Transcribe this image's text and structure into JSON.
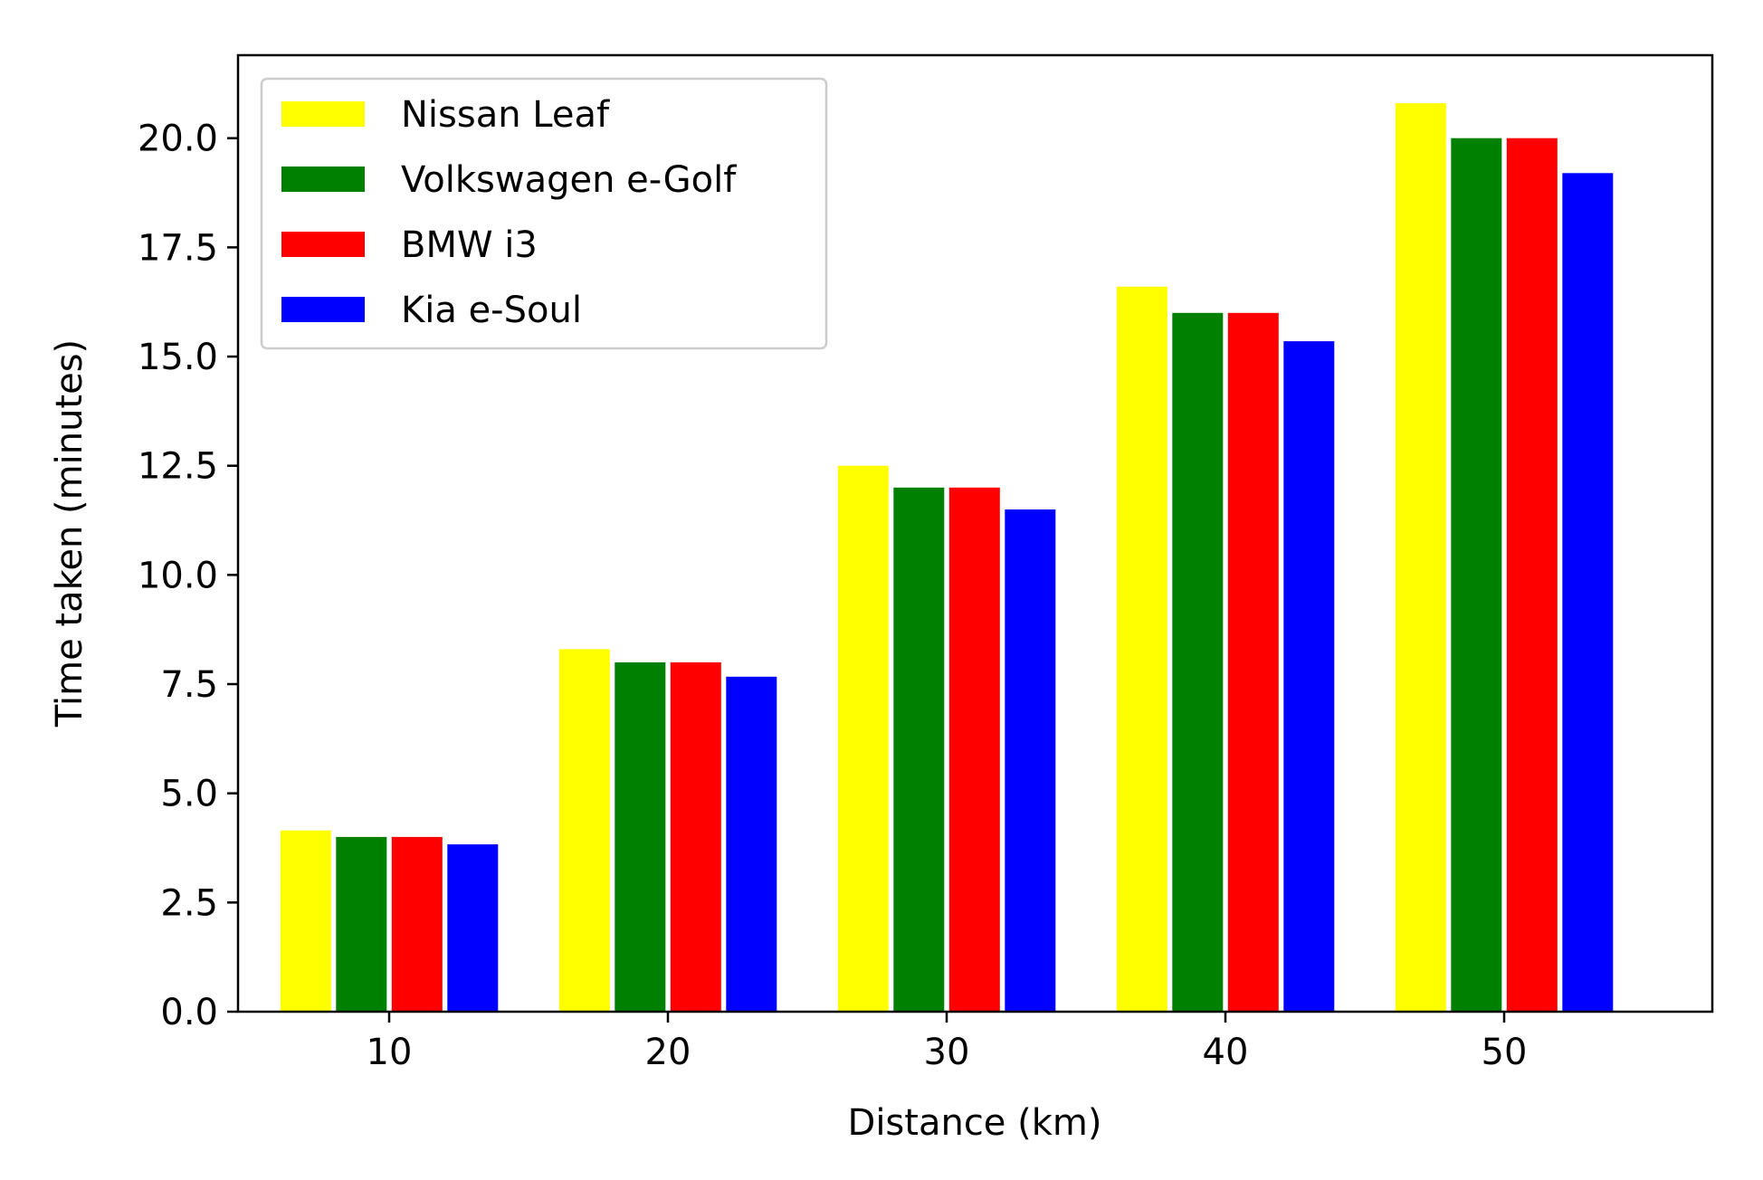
{
  "chart_data": {
    "type": "bar",
    "categories": [
      "10",
      "20",
      "30",
      "40",
      "50"
    ],
    "series": [
      {
        "name": "Nissan Leaf",
        "color": "#ffff00",
        "values": [
          4.15,
          8.3,
          12.5,
          16.6,
          20.8
        ]
      },
      {
        "name": "Volkswagen e-Golf",
        "color": "#008000",
        "values": [
          4.0,
          8.0,
          12.0,
          16.0,
          20.0
        ]
      },
      {
        "name": "BMW i3",
        "color": "#ff0000",
        "values": [
          4.0,
          8.0,
          12.0,
          16.0,
          20.0
        ]
      },
      {
        "name": "Kia e-Soul",
        "color": "#0000ff",
        "values": [
          3.83,
          7.67,
          11.5,
          15.35,
          19.2
        ]
      }
    ],
    "xlabel": "Distance (km)",
    "ylabel": "Time taken (minutes)",
    "ylim": [
      0,
      21.9
    ],
    "yticks": [
      "0.0",
      "2.5",
      "5.0",
      "7.5",
      "10.0",
      "12.5",
      "15.0",
      "17.5",
      "20.0"
    ],
    "grid": false,
    "legend_position": "top-left"
  }
}
